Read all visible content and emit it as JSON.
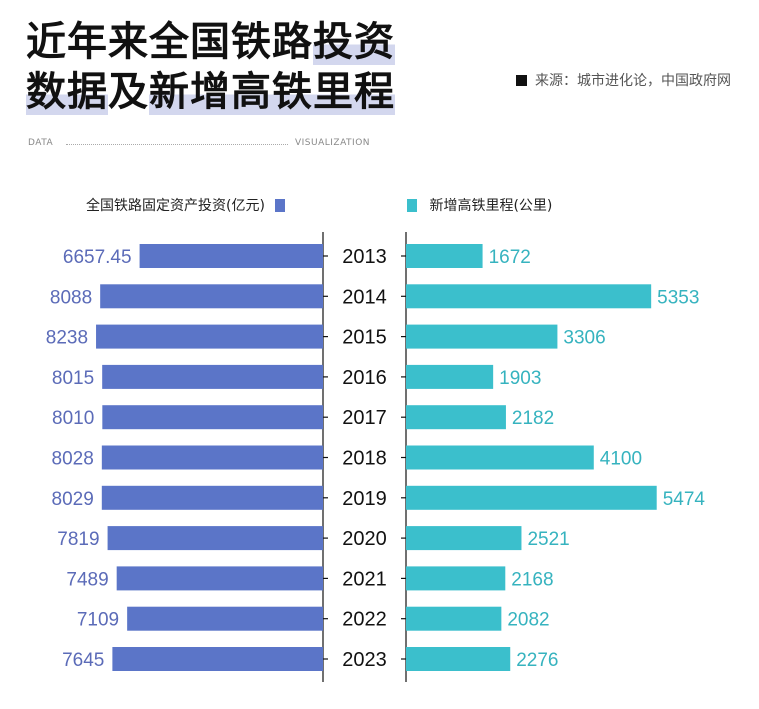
{
  "header": {
    "title_line1_plain": "近年来全国铁路",
    "title_line1_hl": "投资",
    "title_line2_hl1": "数据",
    "title_line2_plain": "及",
    "title_line2_hl2": "新增高铁里程",
    "source": "来源：城市进化论，中国政府网",
    "tag_left": "DATA",
    "tag_right": "VISUALIZATION"
  },
  "colors": {
    "investment": "#5b75c8",
    "mileage": "#3bbfcc",
    "highlight": "#d3d7ee"
  },
  "chart_data": {
    "type": "bar",
    "orientation": "horizontal-butterfly",
    "categories": [
      "2013",
      "2014",
      "2015",
      "2016",
      "2017",
      "2018",
      "2019",
      "2020",
      "2021",
      "2022",
      "2023"
    ],
    "series": [
      {
        "name": "全国铁路固定资产投资(亿元)",
        "side": "left",
        "values": [
          6657.45,
          8088,
          8238,
          8015,
          8010,
          8028,
          8029,
          7819,
          7489,
          7109,
          7645
        ],
        "labels": [
          "6657.45",
          "8088",
          "8238",
          "8015",
          "8010",
          "8028",
          "8029",
          "7819",
          "7489",
          "7109",
          "7645"
        ]
      },
      {
        "name": "新增高铁里程(公里)",
        "side": "right",
        "values": [
          1672,
          5353,
          3306,
          1903,
          2182,
          4100,
          5474,
          2521,
          2168,
          2082,
          2276
        ],
        "labels": [
          "1672",
          "5353",
          "3306",
          "1903",
          "2182",
          "4100",
          "5474",
          "2521",
          "2168",
          "2082",
          "2276"
        ]
      }
    ],
    "grid": false,
    "legend": "top"
  }
}
